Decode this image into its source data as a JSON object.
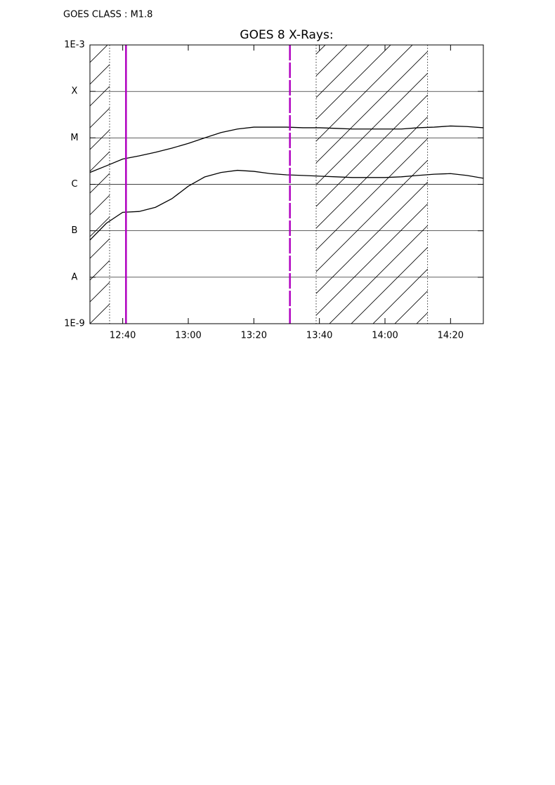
{
  "chart_data": {
    "type": "line",
    "annotation": "GOES CLASS : M1.8",
    "title": "GOES 8 X-Rays:",
    "yscale": "log",
    "ylim": [
      1e-09,
      0.001
    ],
    "yticks": [
      {
        "value": 1e-09,
        "label": "1E-9"
      },
      {
        "value": 1e-08,
        "label": "A"
      },
      {
        "value": 1e-07,
        "label": "B"
      },
      {
        "value": 1e-06,
        "label": "C"
      },
      {
        "value": 1e-05,
        "label": "M"
      },
      {
        "value": 0.0001,
        "label": "X"
      },
      {
        "value": 0.001,
        "label": "1E-3"
      }
    ],
    "xlim": [
      "12:30",
      "14:30"
    ],
    "xticks": [
      "12:40",
      "13:00",
      "13:20",
      "13:40",
      "14:00",
      "14:20"
    ],
    "grid": true,
    "x": [
      "12:30",
      "12:35",
      "12:40",
      "12:45",
      "12:50",
      "12:55",
      "13:00",
      "13:05",
      "13:10",
      "13:15",
      "13:20",
      "13:25",
      "13:30",
      "13:35",
      "13:40",
      "13:45",
      "13:50",
      "13:55",
      "14:00",
      "14:05",
      "14:10",
      "14:15",
      "14:20",
      "14:25",
      "14:30"
    ],
    "series": [
      {
        "color": "#000000",
        "values": [
          1.8e-06,
          2.5e-06,
          3.5e-06,
          4.1e-06,
          4.9e-06,
          6e-06,
          7.6e-06,
          1e-05,
          1.3e-05,
          1.55e-05,
          1.7e-05,
          1.7e-05,
          1.7e-05,
          1.65e-05,
          1.65e-05,
          1.6e-05,
          1.55e-05,
          1.55e-05,
          1.55e-05,
          1.55e-05,
          1.65e-05,
          1.7e-05,
          1.8e-05,
          1.75e-05,
          1.65e-05
        ]
      },
      {
        "color": "#000000",
        "values": [
          6.3e-08,
          1.45e-07,
          2.5e-07,
          2.6e-07,
          3.2e-07,
          4.9e-07,
          9.1e-07,
          1.44e-06,
          1.8e-06,
          2e-06,
          1.9e-06,
          1.7e-06,
          1.6e-06,
          1.55e-06,
          1.5e-06,
          1.45e-06,
          1.4e-06,
          1.4e-06,
          1.4e-06,
          1.45e-06,
          1.55e-06,
          1.65e-06,
          1.7e-06,
          1.55e-06,
          1.35e-06
        ]
      }
    ],
    "markers": [
      {
        "x": "12:41",
        "color": "#b000c0",
        "style": "solid"
      },
      {
        "x": "13:31",
        "color": "#b000c0",
        "style": "dashed"
      }
    ],
    "shaded": [
      [
        "12:30",
        "12:36"
      ],
      [
        "13:39",
        "14:13"
      ]
    ]
  }
}
